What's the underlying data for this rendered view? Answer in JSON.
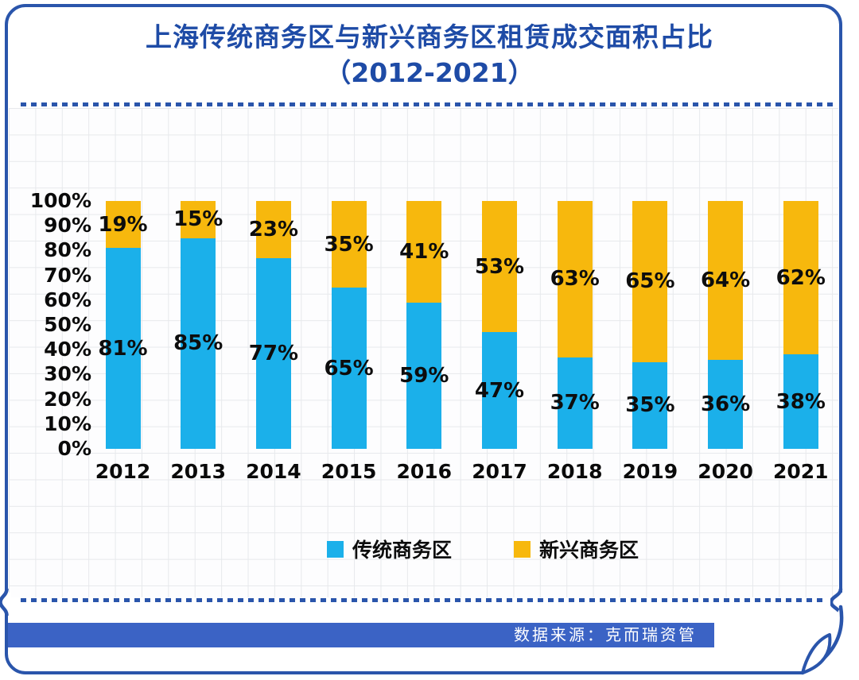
{
  "page": {
    "title_line1": "上海传统商务区与新兴商务区租赁成交面积占比",
    "title_line2": "（2012-2021）",
    "source_label": "数据来源：克而瑞资管"
  },
  "colors": {
    "frame_blue": "#2a55ab",
    "title_blue": "#1e4ba6",
    "ribbon_blue": "#3b63c5",
    "bar_blue": "#1bb0ea",
    "bar_yellow": "#f7b80d",
    "label_black": "#0d0d0d"
  },
  "chart_data": {
    "type": "bar",
    "stacked": true,
    "title": "上海传统商务区与新兴商务区租赁成交面积占比（2012-2021）",
    "categories": [
      "2012",
      "2013",
      "2014",
      "2015",
      "2016",
      "2017",
      "2018",
      "2019",
      "2020",
      "2021"
    ],
    "series": [
      {
        "name": "传统商务区",
        "color": "#1bb0ea",
        "values": [
          81,
          85,
          77,
          65,
          59,
          47,
          37,
          35,
          36,
          38
        ]
      },
      {
        "name": "新兴商务区",
        "color": "#f7b80d",
        "values": [
          19,
          15,
          23,
          35,
          41,
          53,
          63,
          65,
          64,
          62
        ]
      }
    ],
    "value_suffix": "%",
    "y_ticks": [
      "100%",
      "90%",
      "80%",
      "70%",
      "60%",
      "50%",
      "40%",
      "30%",
      "20%",
      "10%",
      "0%"
    ],
    "ylim": [
      0,
      100
    ],
    "xlabel": "",
    "ylabel": "",
    "grid": true,
    "legend_position": "bottom"
  }
}
